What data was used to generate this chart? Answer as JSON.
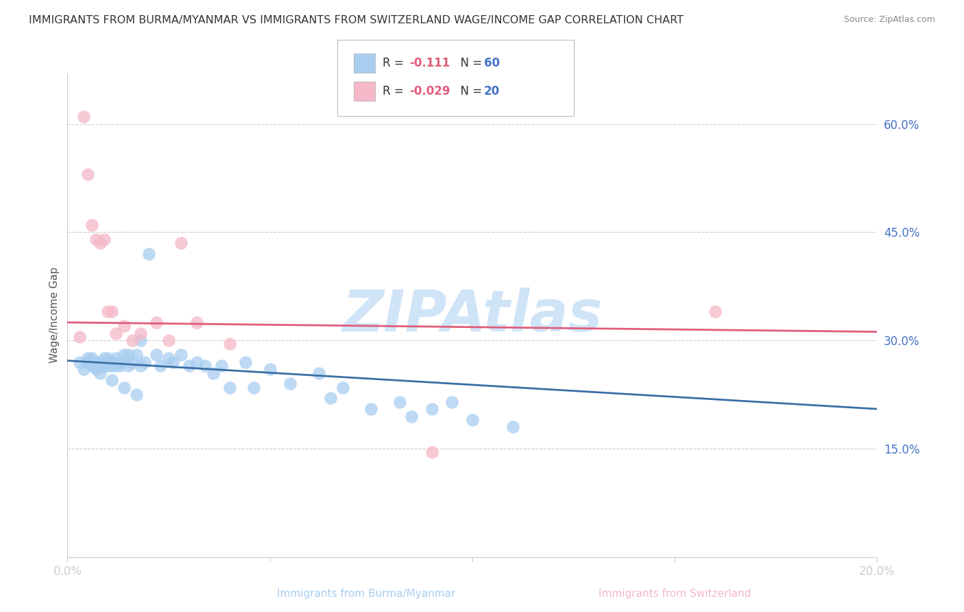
{
  "title": "IMMIGRANTS FROM BURMA/MYANMAR VS IMMIGRANTS FROM SWITZERLAND WAGE/INCOME GAP CORRELATION CHART",
  "source": "Source: ZipAtlas.com",
  "ylabel": "Wage/Income Gap",
  "y_tick_labels": [
    "15.0%",
    "30.0%",
    "45.0%",
    "60.0%"
  ],
  "y_tick_values": [
    0.15,
    0.3,
    0.45,
    0.6
  ],
  "xlim": [
    0.0,
    0.2
  ],
  "ylim": [
    0.0,
    0.67
  ],
  "blue_color": "#a8cdf0",
  "pink_color": "#f5b8c8",
  "blue_line_color": "#3a6ea5",
  "pink_line_color": "#e05c7a",
  "watermark": "ZIPAtlas",
  "watermark_color": "#d0e4f7",
  "legend_text_color": "#4472c4",
  "legend_number_color": "#e05c7a",
  "blue_scatter_x": [
    0.003,
    0.004,
    0.005,
    0.006,
    0.006,
    0.007,
    0.007,
    0.007,
    0.008,
    0.008,
    0.009,
    0.009,
    0.01,
    0.01,
    0.01,
    0.011,
    0.011,
    0.012,
    0.012,
    0.013,
    0.013,
    0.014,
    0.015,
    0.015,
    0.016,
    0.017,
    0.018,
    0.018,
    0.019,
    0.02,
    0.022,
    0.023,
    0.025,
    0.026,
    0.028,
    0.03,
    0.032,
    0.034,
    0.036,
    0.038,
    0.04,
    0.044,
    0.046,
    0.05,
    0.055,
    0.062,
    0.065,
    0.068,
    0.075,
    0.082,
    0.085,
    0.09,
    0.095,
    0.1,
    0.11,
    0.005,
    0.008,
    0.011,
    0.014,
    0.017
  ],
  "blue_scatter_y": [
    0.27,
    0.26,
    0.27,
    0.265,
    0.275,
    0.26,
    0.265,
    0.27,
    0.265,
    0.27,
    0.265,
    0.275,
    0.27,
    0.265,
    0.275,
    0.265,
    0.27,
    0.265,
    0.275,
    0.265,
    0.27,
    0.28,
    0.265,
    0.28,
    0.27,
    0.28,
    0.3,
    0.265,
    0.27,
    0.42,
    0.28,
    0.265,
    0.275,
    0.27,
    0.28,
    0.265,
    0.27,
    0.265,
    0.255,
    0.265,
    0.235,
    0.27,
    0.235,
    0.26,
    0.24,
    0.255,
    0.22,
    0.235,
    0.205,
    0.215,
    0.195,
    0.205,
    0.215,
    0.19,
    0.18,
    0.275,
    0.255,
    0.245,
    0.235,
    0.225
  ],
  "pink_scatter_x": [
    0.003,
    0.004,
    0.005,
    0.006,
    0.007,
    0.008,
    0.009,
    0.01,
    0.011,
    0.012,
    0.014,
    0.016,
    0.018,
    0.022,
    0.025,
    0.028,
    0.032,
    0.04,
    0.09,
    0.16
  ],
  "pink_scatter_y": [
    0.305,
    0.61,
    0.53,
    0.46,
    0.44,
    0.435,
    0.44,
    0.34,
    0.34,
    0.31,
    0.32,
    0.3,
    0.31,
    0.325,
    0.3,
    0.435,
    0.325,
    0.295,
    0.145,
    0.34
  ],
  "blue_trend_x": [
    0.0,
    0.2
  ],
  "blue_trend_y": [
    0.272,
    0.205
  ],
  "pink_trend_x": [
    0.0,
    0.2
  ],
  "pink_trend_y": [
    0.325,
    0.312
  ]
}
